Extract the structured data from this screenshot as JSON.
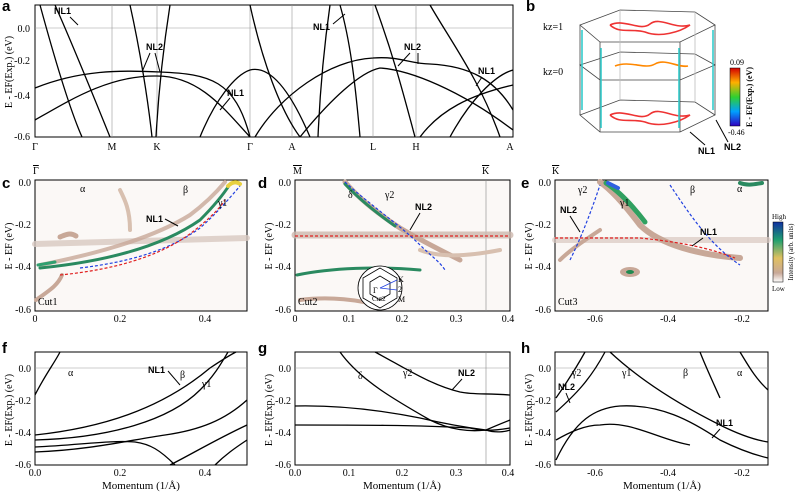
{
  "panels": {
    "a": "a",
    "b": "b",
    "c": "c",
    "d": "d",
    "e": "e",
    "f": "f",
    "g": "g",
    "h": "h"
  },
  "panel_a": {
    "ylabel": "E - EF(Exp.) (eV)",
    "yticks": [
      "0.0",
      "-0.2",
      "-0.4",
      "-0.6"
    ],
    "kpoints": [
      "Γ",
      "M",
      "K",
      "Γ",
      "A",
      "L",
      "H",
      "A"
    ],
    "annotations": {
      "nl1_left": "NL1",
      "nl1_top": "NL1",
      "nl1_mid": "NL1",
      "nl1_right": "NL1",
      "nl2_left": "NL2",
      "nl2_right": "NL2"
    }
  },
  "panel_b": {
    "kz1": "kz=1",
    "kz0": "kz=0",
    "cbar_max": "0.09",
    "cbar_min": "-0.46",
    "cbar_label": "E - EF(Exp.) (eV)",
    "nl1": "NL1",
    "nl2": "NL2"
  },
  "panel_c": {
    "top_left": "Γ",
    "cut": "Cut1",
    "ylabel": "E - EF (eV)",
    "yticks": [
      "0.0",
      "-0.2",
      "-0.4",
      "-0.6"
    ],
    "xticks": [
      "0",
      "0.2",
      "0.4"
    ],
    "bands": {
      "alpha": "α",
      "beta": "β",
      "gamma1": "γ1"
    },
    "nl1": "NL1"
  },
  "panel_d": {
    "top_left": "M",
    "top_right": "K",
    "cut": "Cut2",
    "ylabel": "E - EF (eV)",
    "yticks": [
      "0.0",
      "-0.2",
      "-0.4",
      "-0.6"
    ],
    "xticks": [
      "0",
      "0.1",
      "0.2",
      "0.3",
      "0.4"
    ],
    "bands": {
      "delta": "δ",
      "gamma2": "γ2"
    },
    "nl2": "NL2",
    "inset": {
      "gamma": "Γ",
      "k": "K",
      "m": "M",
      "cut": "Cut2",
      "two": "2"
    }
  },
  "panel_e": {
    "top_left": "K",
    "cut": "Cut3",
    "ylabel": "E - EF (eV)",
    "yticks": [
      "0.0",
      "-0.2",
      "-0.4",
      "-0.6"
    ],
    "xticks": [
      "-0.6",
      "-0.4",
      "-0.2"
    ],
    "bands": {
      "gamma2": "γ2",
      "gamma1": "γ1",
      "beta": "β",
      "alpha": "α"
    },
    "nl1": "NL1",
    "nl2": "NL2",
    "cbar_high": "High",
    "cbar_low": "Low",
    "cbar_label": "Intensity (arb. units)"
  },
  "panel_f": {
    "ylabel": "E - EF(Exp.) (eV)",
    "xlabel": "Momentum (1/Å)",
    "yticks": [
      "0.0",
      "-0.2",
      "-0.4",
      "-0.6"
    ],
    "xticks": [
      "0.0",
      "0.2",
      "0.4"
    ],
    "bands": {
      "alpha": "α",
      "beta": "β",
      "gamma1": "γ1"
    },
    "nl1": "NL1"
  },
  "panel_g": {
    "ylabel": "E - EF(Exp.) (eV)",
    "xlabel": "Momentum (1/Å)",
    "yticks": [
      "0.0",
      "-0.2",
      "-0.4",
      "-0.6"
    ],
    "xticks": [
      "0.0",
      "0.1",
      "0.2",
      "0.3",
      "0.4"
    ],
    "bands": {
      "delta": "δ",
      "gamma2": "γ2"
    },
    "nl2": "NL2"
  },
  "panel_h": {
    "ylabel": "E - EF(Exp.) (eV)",
    "xlabel": "Momentum (1/Å)",
    "yticks": [
      "0.0",
      "-0.2",
      "-0.4",
      "-0.6"
    ],
    "xticks": [
      "-0.6",
      "-0.4",
      "-0.2"
    ],
    "bands": {
      "gamma2": "γ2",
      "gamma1": "γ1",
      "beta": "β",
      "alpha": "α"
    },
    "nl1": "NL1",
    "nl2": "NL2"
  }
}
